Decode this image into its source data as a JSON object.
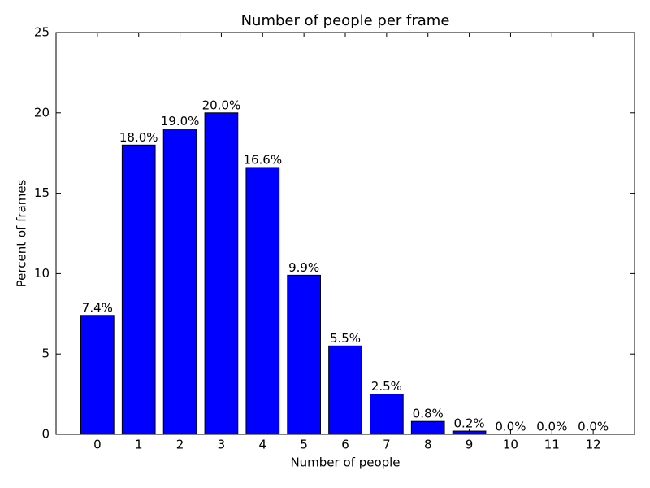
{
  "chart_data": {
    "type": "bar",
    "title": "Number of people per frame",
    "x_label": "Number of people",
    "y_label": "Percent of frames",
    "x": [
      0,
      1,
      2,
      3,
      4,
      5,
      6,
      7,
      8,
      9,
      10,
      11,
      12
    ],
    "values": [
      7.4,
      18.0,
      19.0,
      20.0,
      16.6,
      9.9,
      5.5,
      2.5,
      0.8,
      0.2,
      0.0,
      0.0,
      0.0
    ],
    "value_labels": [
      "7.4%",
      "18.0%",
      "19.0%",
      "20.0%",
      "16.6%",
      "9.9%",
      "5.5%",
      "2.5%",
      "0.8%",
      "0.2%",
      "0.0%",
      "0.0%",
      "0.0%"
    ],
    "color": "#0000ff",
    "xlim": [
      -1,
      13
    ],
    "xticks": [
      0,
      1,
      2,
      3,
      4,
      5,
      6,
      7,
      8,
      9,
      10,
      11,
      12
    ],
    "ylim": [
      0,
      25
    ],
    "yticks": [
      0,
      5,
      10,
      15,
      20,
      25
    ]
  }
}
